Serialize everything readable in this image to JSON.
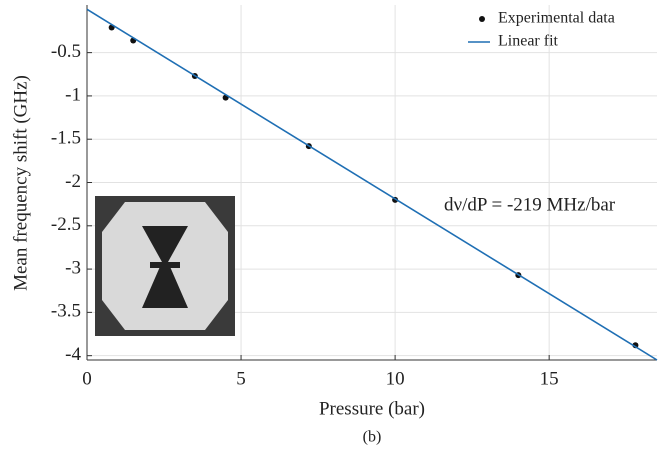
{
  "chart_data": {
    "type": "scatter",
    "x_label": "Pressure (bar)",
    "y_label": "Mean frequency shift (GHz)",
    "caption": "(b)",
    "annotation": "dν/dP  = -219 MHz/bar",
    "xlim": [
      0,
      18.5
    ],
    "ylim": [
      -4.05,
      0.05
    ],
    "xticks": [
      0,
      5,
      10,
      15
    ],
    "yticks": [
      -0.5,
      -1,
      -1.5,
      -2,
      -2.5,
      -3,
      -3.5,
      -4
    ],
    "grid": true,
    "legend": "upper right",
    "series": [
      {
        "name": "Experimental data",
        "kind": "points",
        "color": "#111111",
        "x": [
          0.8,
          1.5,
          3.5,
          4.5,
          7.2,
          10,
          14,
          17.8
        ],
        "values": [
          -0.21,
          -0.36,
          -0.77,
          -1.02,
          -1.58,
          -2.2,
          -3.07,
          -3.88
        ]
      },
      {
        "name": "Linear fit",
        "kind": "line",
        "color": "#1f6fb4",
        "x": [
          0,
          18.5
        ],
        "values": [
          0.0,
          -4.05
        ]
      }
    ]
  }
}
